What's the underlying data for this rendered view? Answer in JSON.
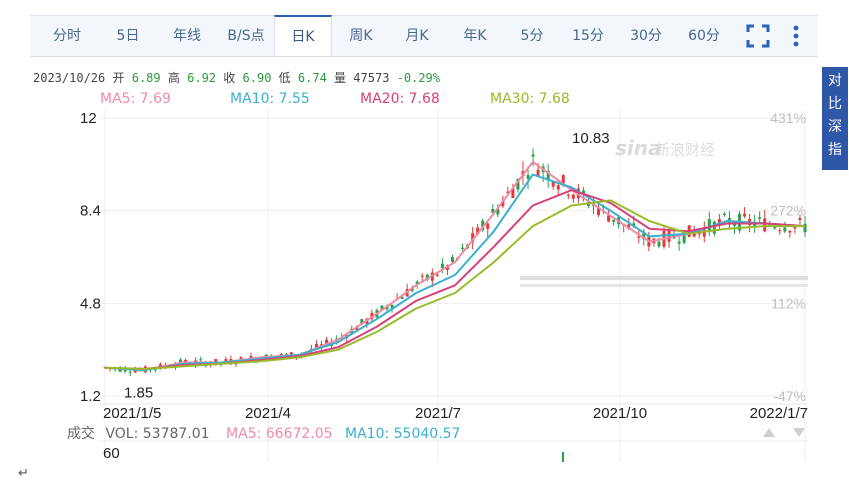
{
  "tabs": [
    {
      "label": "分时",
      "active": false
    },
    {
      "label": "5日",
      "active": false
    },
    {
      "label": "年线",
      "active": false
    },
    {
      "label": "B/S点",
      "active": false
    },
    {
      "label": "日K",
      "active": true
    },
    {
      "label": "周K",
      "active": false
    },
    {
      "label": "月K",
      "active": false
    },
    {
      "label": "年K",
      "active": false
    },
    {
      "label": "5分",
      "active": false
    },
    {
      "label": "15分",
      "active": false
    },
    {
      "label": "30分",
      "active": false
    },
    {
      "label": "60分",
      "active": false
    }
  ],
  "quote": {
    "date": "2023/10/26",
    "open_label": "开",
    "open": "6.89",
    "high_label": "高",
    "high": "6.92",
    "close_label": "收",
    "close": "6.90",
    "low_label": "低",
    "low": "6.74",
    "volume_label": "量",
    "volume": "47573",
    "change": "-0.29%"
  },
  "ma": [
    {
      "text": "MA5: 7.69",
      "color": "#f08aa8"
    },
    {
      "text": "MA10: 7.55",
      "color": "#3ab0d0"
    },
    {
      "text": "MA20: 7.68",
      "color": "#d8407a"
    },
    {
      "text": "MA30: 7.68",
      "color": "#98bb2a"
    }
  ],
  "side_button": [
    "对",
    "比",
    "深",
    "指"
  ],
  "watermark": {
    "logo": "sina",
    "text": "新浪财经"
  },
  "volume_panel": {
    "label": "成交",
    "vol": "VOL: 53787.01",
    "ma5": "MA5: 66672.05",
    "ma10": "MA10: 55040.57",
    "ytick": "60"
  },
  "corner_mark": "↵",
  "colors": {
    "up": "#e03a3a",
    "down": "#2aa04a",
    "grid": "#eeeeee"
  },
  "chart_data": {
    "type": "line",
    "title": "",
    "xlabel": "",
    "ylabel": "",
    "ylim": [
      1.2,
      12
    ],
    "y_ticks": [
      "12",
      "8.4",
      "4.8",
      "1.2"
    ],
    "y_tick_values": [
      12,
      8.4,
      4.8,
      1.2
    ],
    "pct_ticks": [
      "431%",
      "272%",
      "112%",
      "-47%"
    ],
    "x_ticks": [
      "2021/1/5",
      "2021/4",
      "2021/7",
      "2021/10",
      "2022/1/7"
    ],
    "annotations": [
      {
        "text": "10.83",
        "x": "2021/9",
        "y": 10.83
      },
      {
        "text": "1.85",
        "x": "2021/1",
        "y": 1.85
      }
    ],
    "x": [
      "2021/1/5",
      "2021/2",
      "2021/3",
      "2021/4",
      "2021/5",
      "2021/6",
      "2021/7",
      "2021/7/15",
      "2021/8",
      "2021/8/15",
      "2021/9",
      "2021/9/15",
      "2021/10",
      "2021/10/15",
      "2021/11",
      "2021/11/15",
      "2021/12",
      "2021/12/15",
      "2022/1/7"
    ],
    "series": [
      {
        "name": "MA5",
        "color": "#f08aa8",
        "values": [
          2.3,
          2.2,
          2.5,
          2.5,
          2.7,
          2.8,
          3.4,
          4.4,
          5.5,
          6.4,
          8.3,
          10.3,
          9.2,
          8.2,
          7.2,
          7.5,
          8.0,
          7.9,
          7.8
        ]
      },
      {
        "name": "MA10",
        "color": "#3ab0d0",
        "values": [
          2.3,
          2.2,
          2.45,
          2.5,
          2.65,
          2.8,
          3.3,
          4.2,
          5.2,
          5.9,
          7.6,
          9.8,
          9.3,
          8.4,
          7.4,
          7.5,
          8.0,
          7.9,
          7.8
        ]
      },
      {
        "name": "MA20",
        "color": "#d8407a",
        "values": [
          2.3,
          2.25,
          2.4,
          2.45,
          2.6,
          2.75,
          3.1,
          3.9,
          4.9,
          5.5,
          7.0,
          8.6,
          9.2,
          8.7,
          7.7,
          7.6,
          7.9,
          7.9,
          7.8
        ]
      },
      {
        "name": "MA30",
        "color": "#98bb2a",
        "values": [
          2.3,
          2.25,
          2.35,
          2.45,
          2.55,
          2.7,
          3.0,
          3.7,
          4.6,
          5.2,
          6.4,
          7.8,
          8.6,
          8.8,
          8.0,
          7.5,
          7.7,
          7.8,
          7.8
        ]
      }
    ]
  }
}
